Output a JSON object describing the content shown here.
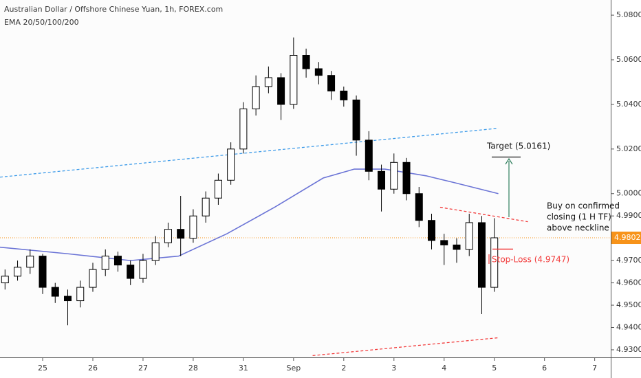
{
  "chart_data": {
    "type": "candlestick",
    "title": "Australian Dollar / Offshore Chinese Yuan, 1h, FOREX.com",
    "subtitle": "EMA 20/50/100/200",
    "xlim": [
      -0.85,
      11.32
    ],
    "xticks": [
      {
        "value": 0,
        "label": "25"
      },
      {
        "value": 1,
        "label": "26"
      },
      {
        "value": 2,
        "label": "27"
      },
      {
        "value": 3,
        "label": "28"
      },
      {
        "value": 4,
        "label": "31"
      },
      {
        "value": 5,
        "label": "Sep"
      },
      {
        "value": 6,
        "label": "2"
      },
      {
        "value": 7,
        "label": "3"
      },
      {
        "value": 8,
        "label": "4"
      },
      {
        "value": 9,
        "label": "5"
      },
      {
        "value": 10,
        "label": "6"
      },
      {
        "value": 11,
        "label": "7"
      }
    ],
    "ylim": [
      4.9266,
      5.0868
    ],
    "yticks": [
      {
        "value": 5.08,
        "label": "5.0800"
      },
      {
        "value": 5.06,
        "label": "5.0600"
      },
      {
        "value": 5.04,
        "label": "5.0400"
      },
      {
        "value": 5.02,
        "label": "5.0200"
      },
      {
        "value": 5.0,
        "label": "5.0000"
      },
      {
        "value": 4.99,
        "label": "4.9900"
      },
      {
        "value": 4.97,
        "label": "4.9700"
      },
      {
        "value": 4.96,
        "label": "4.9600"
      },
      {
        "value": 4.95,
        "label": "4.9500"
      },
      {
        "value": 4.94,
        "label": "4.9400"
      },
      {
        "value": 4.93,
        "label": "4.9300"
      }
    ],
    "last_price": {
      "value": 4.9802,
      "label": "4.9802",
      "color": "#f7931a"
    },
    "candles": {
      "up_color": "#ffffff",
      "down_color": "#000000",
      "x": [
        -0.75,
        -0.5,
        -0.25,
        0,
        0.25,
        0.5,
        0.75,
        1,
        1.25,
        1.5,
        1.75,
        2,
        2.25,
        2.5,
        2.75,
        3,
        3.25,
        3.5,
        3.75,
        4,
        4.25,
        4.5,
        4.75,
        5,
        5.25,
        5.5,
        5.75,
        6,
        6.25,
        6.5,
        6.75,
        7,
        7.25,
        7.5,
        7.75,
        8,
        8.25,
        8.5,
        8.75,
        9
      ],
      "open": [
        4.96,
        4.963,
        4.967,
        4.972,
        4.958,
        4.954,
        4.952,
        4.958,
        4.966,
        4.972,
        4.968,
        4.962,
        4.97,
        4.978,
        4.984,
        4.98,
        4.99,
        4.998,
        5.006,
        5.02,
        5.038,
        5.048,
        5.052,
        5.04,
        5.062,
        5.056,
        5.053,
        5.046,
        5.042,
        5.024,
        5.01,
        5.002,
        5.014,
        5.0,
        4.988,
        4.979,
        4.977,
        4.975,
        4.987,
        4.958
      ],
      "high": [
        4.966,
        4.97,
        4.975,
        4.973,
        4.96,
        4.957,
        4.961,
        4.969,
        4.975,
        4.974,
        4.97,
        4.973,
        4.981,
        4.987,
        4.999,
        4.993,
        5.001,
        5.009,
        5.023,
        5.041,
        5.053,
        5.057,
        5.054,
        5.07,
        5.065,
        5.059,
        5.055,
        5.048,
        5.044,
        5.028,
        5.013,
        5.018,
        5.016,
        5.003,
        4.991,
        4.982,
        4.98,
        4.991,
        4.99,
        4.989
      ],
      "low": [
        4.957,
        4.961,
        4.964,
        4.955,
        4.951,
        4.941,
        4.949,
        4.956,
        4.963,
        4.965,
        4.959,
        4.96,
        4.968,
        4.976,
        4.972,
        4.978,
        4.987,
        4.995,
        5.004,
        5.018,
        5.035,
        5.045,
        5.033,
        5.038,
        5.052,
        5.049,
        5.042,
        5.039,
        5.017,
        5.006,
        4.992,
        5.0,
        4.997,
        4.985,
        4.975,
        4.968,
        4.969,
        4.972,
        4.946,
        4.956
      ],
      "close": [
        4.963,
        4.967,
        4.972,
        4.958,
        4.954,
        4.952,
        4.958,
        4.966,
        4.972,
        4.968,
        4.962,
        4.97,
        4.978,
        4.984,
        4.98,
        4.99,
        4.998,
        5.006,
        5.02,
        5.038,
        5.048,
        5.052,
        5.04,
        5.062,
        5.056,
        5.053,
        5.046,
        5.042,
        5.024,
        5.01,
        5.002,
        5.014,
        5.0,
        4.988,
        4.979,
        4.977,
        4.975,
        4.987,
        4.958,
        4.9802
      ]
    },
    "ema": {
      "color": "#6b74d6",
      "x": [
        -0.85,
        0.52,
        1.75,
        2.71,
        3.67,
        4.63,
        5.59,
        6.21,
        6.82,
        7.64,
        8.19,
        9.08
      ],
      "values": [
        4.976,
        4.973,
        4.97,
        4.972,
        4.982,
        4.994,
        5.007,
        5.011,
        5.011,
        5.008,
        5.005,
        5.0
      ]
    },
    "trendlines": [
      {
        "color": "#3d9be9",
        "x": [
          -0.85,
          9.08
        ],
        "values": [
          5.0074,
          5.0293
        ]
      },
      {
        "color": "#f23b3b",
        "x": [
          7.92,
          9.67
        ],
        "values": [
          4.9939,
          4.9874
        ]
      },
      {
        "color": "#f23b3b",
        "x": [
          5.38,
          9.08
        ],
        "values": [
          4.9274,
          4.9354
        ]
      }
    ],
    "annotations": {
      "target": "Target (5.0161)",
      "stop_loss": "Stop-Loss (4.9747)",
      "buy": [
        "Buy on confirmed",
        "closing (1 H TF)",
        "above neckline"
      ]
    }
  }
}
